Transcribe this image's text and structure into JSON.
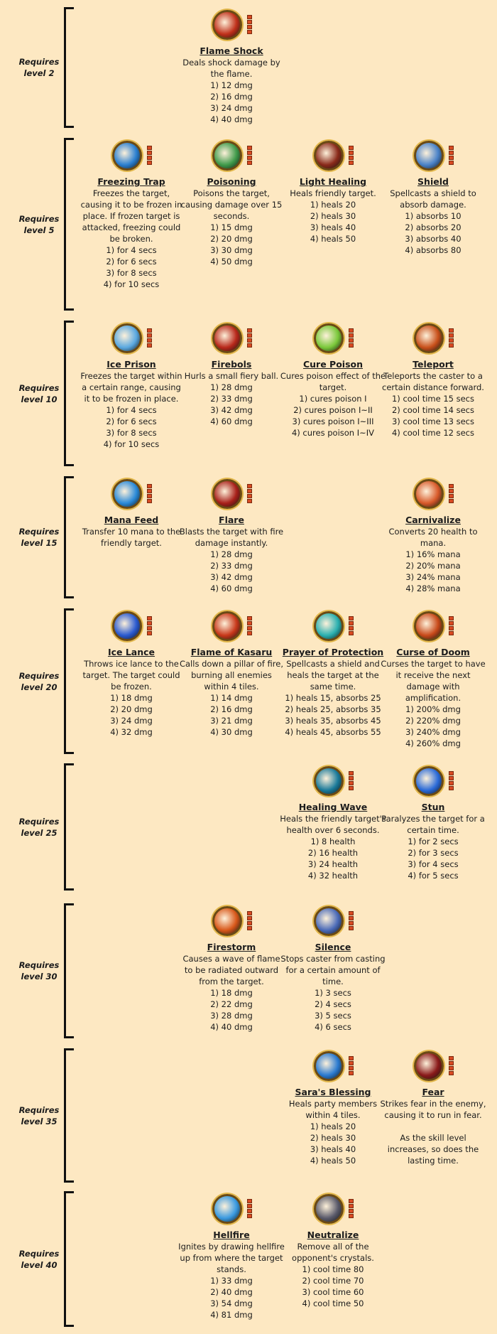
{
  "tiers": [
    {
      "requirement": "Requires level 2",
      "skills": [
        null,
        {
          "name": "Flame Shock",
          "icon_color": "#c0301a",
          "description": "Deals shock damage by the flame.",
          "levels": [
            "1) 12 dmg",
            "2) 16 dmg",
            "3) 24 dmg",
            "4) 40 dmg"
          ]
        },
        null,
        null
      ]
    },
    {
      "requirement": "Requires level 5",
      "skills": [
        {
          "name": "Freezing Trap",
          "icon_color": "#2a7fd0",
          "description": "Freezes the target, causing it to be frozen in place. If frozen target is attacked, freezing could be broken.",
          "levels": [
            "1) for 4 secs",
            "2) for 6 secs",
            "3) for 8 secs",
            "4) for 10 secs"
          ]
        },
        {
          "name": "Poisoning",
          "icon_color": "#3f9a4a",
          "description": "Poisons the target, causing damage over 15 seconds.",
          "levels": [
            "1) 15 dmg",
            "2) 20 dmg",
            "3) 30 dmg",
            "4) 50 dmg"
          ]
        },
        {
          "name": "Light Healing",
          "icon_color": "#8a2a1a",
          "description": "Heals friendly target.",
          "levels": [
            "1) heals 20",
            "2) heals 30",
            "3) heals 40",
            "4) heals 50"
          ]
        },
        {
          "name": "Shield",
          "icon_color": "#4a82c8",
          "description": "Spellcasts a shield to absorb damage.",
          "levels": [
            "1) absorbs 10",
            "2) absorbs 20",
            "3) absorbs 40",
            "4) absorbs 80"
          ]
        }
      ]
    },
    {
      "requirement": "Requires level 10",
      "skills": [
        {
          "name": "Ice Prison",
          "icon_color": "#5aa8e0",
          "description": "Freezes the target within a certain range, causing it to be frozen in place.",
          "levels": [
            "1) for 4 secs",
            "2) for 6 secs",
            "3) for 8 secs",
            "4) for 10 secs"
          ]
        },
        {
          "name": "Firebols",
          "icon_color": "#b8281a",
          "description": "Hurls a small fiery ball.",
          "levels": [
            "1) 28 dmg",
            "2) 33 dmg",
            "3) 42 dmg",
            "4) 60 dmg"
          ]
        },
        {
          "name": "Cure Poison",
          "icon_color": "#7ac83a",
          "description": "Cures poison effect of the target.",
          "levels": [
            "1) cures poison I",
            "2) cures poison I~II",
            "3) cures poison I~III",
            "4) cures poison I~IV"
          ]
        },
        {
          "name": "Teleport",
          "icon_color": "#c8501a",
          "description": "Teleports the caster to a certain distance forward.",
          "levels": [
            "1) cool time 15 secs",
            "2) cool time 14 secs",
            "3) cool time 13 secs",
            "4) cool time 12 secs"
          ]
        }
      ]
    },
    {
      "requirement": "Requires level 15",
      "skills": [
        {
          "name": "Mana Feed",
          "icon_color": "#2a8ad8",
          "description": "Transfer 10 mana to the friendly target.",
          "levels": []
        },
        {
          "name": "Flare",
          "icon_color": "#a8201a",
          "description": "Blasts the target with fire damage instantly.",
          "levels": [
            "1) 28 dmg",
            "2) 33 dmg",
            "3) 42 dmg",
            "4) 60 dmg"
          ]
        },
        null,
        {
          "name": "Carnivalize",
          "icon_color": "#d85a2a",
          "description": "Converts 20 health to mana.",
          "levels": [
            "1) 16% mana",
            "2) 20% mana",
            "3) 24% mana",
            "4) 28% mana"
          ]
        }
      ]
    },
    {
      "requirement": "Requires level 20",
      "skills": [
        {
          "name": "Ice Lance",
          "icon_color": "#2a5ad0",
          "description": "Throws ice lance to the target. The target could be frozen.",
          "levels": [
            "1) 18 dmg",
            "2) 20 dmg",
            "3) 24 dmg",
            "4) 32 dmg"
          ]
        },
        {
          "name": "Flame of Kasaru",
          "icon_color": "#c8381a",
          "description": "Calls down a pillar of fire, burning all enemies within 4 tiles.",
          "levels": [
            "1) 14 dmg",
            "2) 16 dmg",
            "3) 21 dmg",
            "4) 30 dmg"
          ]
        },
        {
          "name": "Prayer of Protection",
          "icon_color": "#2ab0b0",
          "description": "Spellcasts a shield and heals the target at the same time.",
          "levels": [
            "1) heals 15, absorbs 25",
            "2) heals 25, absorbs 35",
            "3) heals 35, absorbs 45",
            "4) heals 45, absorbs 55"
          ]
        },
        {
          "name": "Curse of Doom",
          "icon_color": "#c84a1a",
          "description": "Curses the target to have it receive the next damage with amplification.",
          "levels": [
            "1) 200% dmg",
            "2) 220% dmg",
            "3) 240% dmg",
            "4) 260% dmg"
          ]
        }
      ]
    },
    {
      "requirement": "Requires level 25",
      "skills": [
        null,
        null,
        {
          "name": "Healing Wave",
          "icon_color": "#1a7a9a",
          "description": "Heals the friendly target's health over 6 seconds.",
          "levels": [
            "1) 8 health",
            "2) 16 health",
            "3) 24 health",
            "4) 32 health"
          ]
        },
        {
          "name": "Stun",
          "icon_color": "#2a6ad8",
          "description": "Paralyzes the target for a certain time.",
          "levels": [
            "1) for 2 secs",
            "2) for 3 secs",
            "3) for 4 secs",
            "4) for 5 secs"
          ]
        }
      ]
    },
    {
      "requirement": "Requires level 30",
      "skills": [
        null,
        {
          "name": "Firestorm",
          "icon_color": "#d8581a",
          "description": "Causes a wave of flame to be radiated outward from the target.",
          "levels": [
            "1) 18 dmg",
            "2) 22 dmg",
            "3) 28 dmg",
            "4) 40 dmg"
          ]
        },
        {
          "name": "Silence",
          "icon_color": "#4a6ab8",
          "description": "Stops caster from casting for a certain amount of time.",
          "levels": [
            "1) 3 secs",
            "2) 4 secs",
            "3) 5 secs",
            "4) 6 secs"
          ]
        },
        null
      ]
    },
    {
      "requirement": "Requires level 35",
      "skills": [
        null,
        null,
        {
          "name": "Sara's Blessing",
          "icon_color": "#2a7ad0",
          "description": "Heals party members within 4 tiles.",
          "levels": [
            "1) heals 20",
            "2) heals 30",
            "3) heals 40",
            "4) heals 50"
          ]
        },
        {
          "name": "Fear",
          "icon_color": "#8a1a1a",
          "description": "Strikes fear in the enemy, causing it to run in fear.",
          "levels": [],
          "note": "As the skill level increases, so does the lasting time."
        }
      ]
    },
    {
      "requirement": "Requires level 40",
      "skills": [
        null,
        {
          "name": "Hellfire",
          "icon_color": "#3a9ae0",
          "description": "Ignites by drawing hellfire up from where the target stands.",
          "levels": [
            "1) 33 dmg",
            "2) 40 dmg",
            "3) 54 dmg",
            "4) 81 dmg"
          ]
        },
        {
          "name": "Neutralize",
          "icon_color": "#5a5a6a",
          "description": "Remove all of the opponent's crystals.",
          "levels": [
            "1) cool time 80",
            "2) cool time 70",
            "3) cool time 60",
            "4) cool time 50"
          ]
        },
        null
      ]
    }
  ]
}
